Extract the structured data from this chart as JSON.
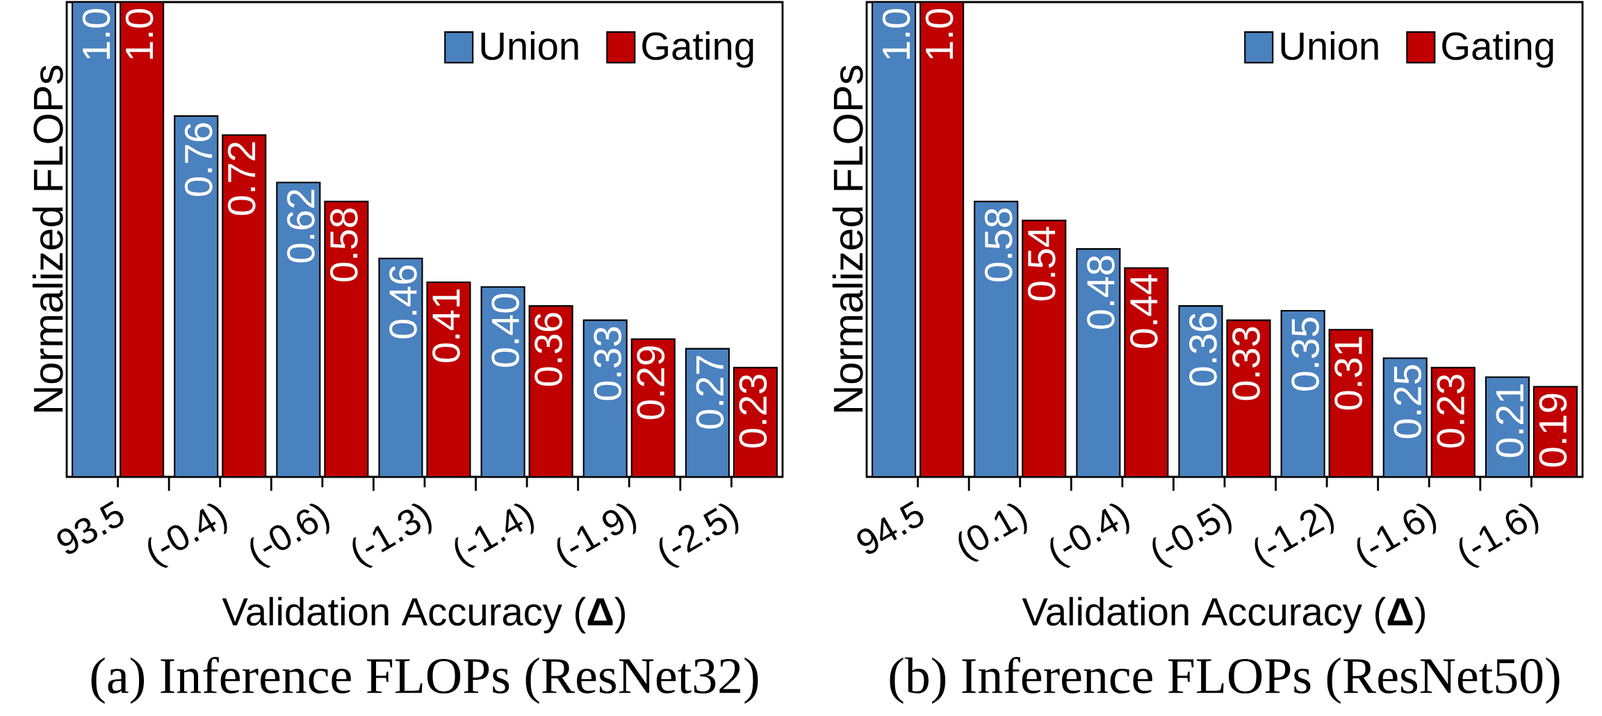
{
  "chart_data": [
    {
      "type": "bar",
      "categories": [
        "93.5",
        "(-0.4)",
        "(-0.6)",
        "(-1.3)",
        "(-1.4)",
        "(-1.9)",
        "(-2.5)"
      ],
      "xlabel": "Validation Accuracy (**Δ**)",
      "ylabel": "Normalized FLOPs",
      "ylim": [
        0,
        1
      ],
      "legend": "top right",
      "annotations": [
        "(a) Inference FLOPs (ResNet32)"
      ],
      "series": [
        {
          "name": "Union",
          "color": "#4a81bf",
          "values": [
            1.0,
            0.76,
            0.62,
            0.46,
            0.4,
            0.33,
            0.27
          ],
          "value_labels": [
            "1.0",
            "0.76",
            "0.62",
            "0.46",
            "0.40",
            "0.33",
            "0.27"
          ]
        },
        {
          "name": "Gating",
          "color": "#c00000",
          "values": [
            1.0,
            0.72,
            0.58,
            0.41,
            0.36,
            0.29,
            0.23
          ],
          "value_labels": [
            "1.0",
            "0.72",
            "0.58",
            "0.41",
            "0.36",
            "0.29",
            "0.23"
          ]
        }
      ]
    },
    {
      "type": "bar",
      "categories": [
        "94.5",
        "(0.1)",
        "(-0.4)",
        "(-0.5)",
        "(-1.2)",
        "(-1.6)",
        "(-1.6)"
      ],
      "xlabel": "Validation Accuracy (**Δ**)",
      "ylabel": "Normalized FLOPs",
      "ylim": [
        0,
        1
      ],
      "legend": "top right",
      "annotations": [
        "(b) Inference FLOPs (ResNet50)"
      ],
      "series": [
        {
          "name": "Union",
          "color": "#4a81bf",
          "values": [
            1.0,
            0.58,
            0.48,
            0.36,
            0.35,
            0.25,
            0.21
          ],
          "value_labels": [
            "1.0",
            "0.58",
            "0.48",
            "0.36",
            "0.35",
            "0.25",
            "0.21"
          ]
        },
        {
          "name": "Gating",
          "color": "#c00000",
          "values": [
            1.0,
            0.54,
            0.44,
            0.33,
            0.31,
            0.23,
            0.19
          ],
          "value_labels": [
            "1.0",
            "0.54",
            "0.44",
            "0.33",
            "0.31",
            "0.23",
            "0.19"
          ]
        }
      ]
    }
  ]
}
